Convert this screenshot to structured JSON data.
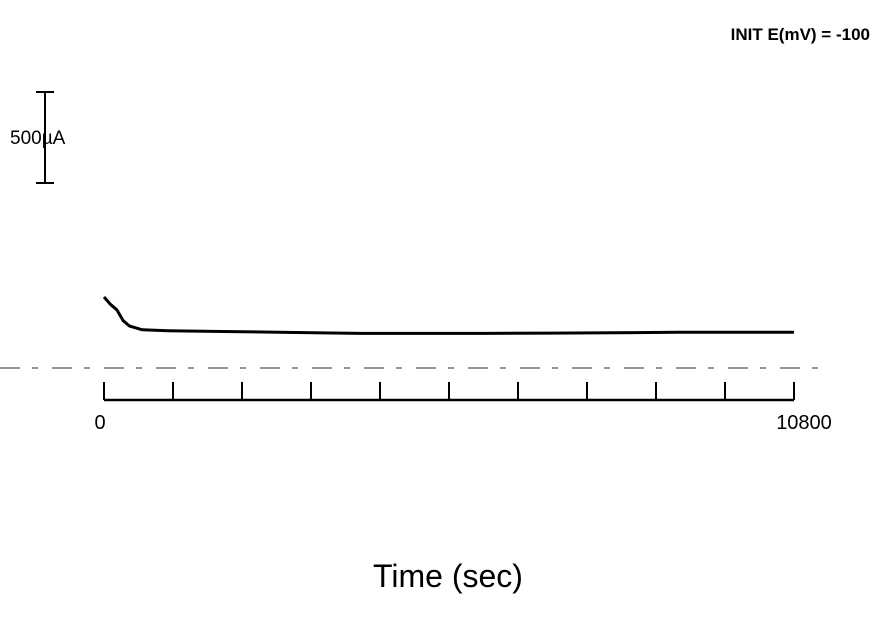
{
  "annotation": "INIT E(mV) = -100",
  "chart_data": {
    "type": "line",
    "title": "",
    "xlabel": "Time (sec)",
    "ylabel": "",
    "xlim": [
      0,
      10800
    ],
    "x_tick_labels": [
      {
        "value": 0,
        "label": "0"
      },
      {
        "value": 10800,
        "label": "10800"
      }
    ],
    "x_minor_tick_count": 9,
    "current_scale_bar": {
      "label": "500µA",
      "value_uA": 500
    },
    "grid": false,
    "legend": "none",
    "series": [
      {
        "x": [
          0,
          100,
          200,
          300,
          400,
          600,
          1000,
          2000,
          3000,
          4000,
          5000,
          6000,
          7000,
          8000,
          9000,
          10000,
          10800
        ],
        "y_uA": [
          390,
          350,
          320,
          260,
          230,
          210,
          205,
          200,
          195,
          190,
          190,
          190,
          192,
          194,
          196,
          196,
          196
        ],
        "y_note": "relative to the lower dashed baseline"
      }
    ]
  }
}
